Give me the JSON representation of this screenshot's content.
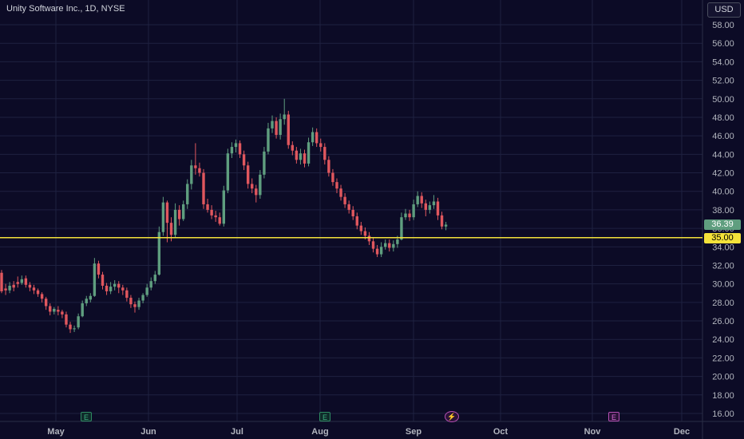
{
  "header": {
    "title": "Unity Software Inc., 1D, NYSE",
    "currency": "USD"
  },
  "markers": {
    "current_price": "36.39",
    "level_price": "35.00"
  },
  "events": [
    {
      "name": "earnings-may",
      "month": "Jun",
      "glyph": "E",
      "kind": "earnings"
    },
    {
      "name": "earnings-aug",
      "month": "Aug",
      "glyph": "E",
      "kind": "earnings"
    },
    {
      "name": "dividend-sep",
      "month": "Sep",
      "glyph": "⚡",
      "kind": "split"
    },
    {
      "name": "earnings-nov",
      "month": "Nov",
      "glyph": "E",
      "kind": "earnings-future"
    }
  ],
  "colors": {
    "up": "#5f9e7f",
    "down": "#e0575e",
    "level": "#f4e23a",
    "background": "#0c0b26",
    "grid": "#1e2140",
    "axis_text": "#b2b5be"
  },
  "chart_data": {
    "type": "candlestick",
    "title": "Unity Software Inc., 1D, NYSE",
    "ylim": [
      15,
      59
    ],
    "y_ticks": [
      "16.00",
      "18.00",
      "20.00",
      "22.00",
      "24.00",
      "26.00",
      "28.00",
      "30.00",
      "32.00",
      "34.00",
      "36.00",
      "38.00",
      "40.00",
      "42.00",
      "44.00",
      "46.00",
      "48.00",
      "50.00",
      "52.00",
      "54.00",
      "56.00",
      "58.00"
    ],
    "x_ticks": [
      "May",
      "Jun",
      "Jul",
      "Aug",
      "Sep",
      "Oct",
      "Nov",
      "Dec"
    ],
    "horizontal_line": 35.0,
    "last_price": 36.39,
    "candles": [
      [
        31.2,
        29.2,
        31.5,
        29.0
      ],
      [
        29.5,
        29.3,
        30.0,
        28.8
      ],
      [
        29.3,
        29.8,
        30.2,
        29.0
      ],
      [
        29.9,
        29.6,
        30.3,
        29.2
      ],
      [
        30.2,
        30.0,
        30.8,
        29.6
      ],
      [
        30.1,
        30.5,
        30.9,
        29.9
      ],
      [
        30.6,
        29.9,
        30.9,
        29.6
      ],
      [
        29.9,
        29.6,
        30.2,
        29.2
      ],
      [
        29.6,
        29.3,
        29.9,
        28.9
      ],
      [
        29.3,
        28.9,
        29.5,
        28.6
      ],
      [
        28.9,
        28.4,
        29.1,
        28.0
      ],
      [
        28.4,
        27.6,
        28.6,
        27.2
      ],
      [
        27.6,
        27.0,
        27.9,
        26.6
      ],
      [
        27.0,
        27.3,
        27.5,
        26.7
      ],
      [
        27.2,
        27.0,
        27.6,
        26.6
      ],
      [
        27.0,
        26.7,
        27.2,
        26.3
      ],
      [
        26.7,
        25.6,
        27.0,
        25.3
      ],
      [
        25.6,
        25.1,
        25.9,
        24.7
      ],
      [
        25.1,
        25.2,
        25.5,
        24.8
      ],
      [
        25.3,
        26.5,
        26.8,
        25.1
      ],
      [
        26.5,
        27.9,
        28.2,
        26.4
      ],
      [
        27.9,
        28.4,
        28.7,
        27.6
      ],
      [
        28.3,
        28.7,
        29.0,
        28.0
      ],
      [
        28.7,
        32.2,
        32.8,
        28.6
      ],
      [
        32.2,
        31.0,
        32.5,
        30.6
      ],
      [
        31.0,
        29.8,
        31.3,
        29.4
      ],
      [
        29.8,
        29.2,
        30.1,
        28.8
      ],
      [
        29.2,
        29.7,
        30.2,
        28.9
      ],
      [
        29.7,
        30.0,
        30.4,
        29.3
      ],
      [
        30.0,
        29.6,
        30.3,
        29.0
      ],
      [
        29.6,
        29.3,
        29.9,
        28.8
      ],
      [
        29.3,
        28.5,
        29.6,
        28.1
      ],
      [
        28.5,
        27.8,
        28.8,
        27.4
      ],
      [
        27.8,
        27.5,
        28.1,
        26.9
      ],
      [
        27.5,
        28.2,
        28.5,
        27.2
      ],
      [
        28.2,
        28.8,
        29.0,
        27.9
      ],
      [
        28.8,
        29.6,
        30.0,
        28.6
      ],
      [
        29.6,
        30.3,
        30.7,
        29.3
      ],
      [
        30.3,
        31.0,
        31.4,
        30.0
      ],
      [
        31.0,
        35.6,
        36.2,
        30.9
      ],
      [
        35.6,
        38.8,
        39.4,
        35.2
      ],
      [
        38.8,
        36.6,
        39.0,
        34.5
      ],
      [
        36.6,
        35.3,
        37.2,
        34.6
      ],
      [
        35.3,
        38.0,
        38.7,
        35.0
      ],
      [
        38.0,
        37.0,
        38.5,
        36.3
      ],
      [
        37.0,
        38.6,
        39.0,
        36.8
      ],
      [
        38.6,
        40.8,
        41.3,
        38.1
      ],
      [
        40.8,
        42.8,
        43.4,
        40.2
      ],
      [
        42.8,
        42.5,
        45.2,
        41.8
      ],
      [
        42.5,
        42.0,
        43.1,
        41.6
      ],
      [
        42.0,
        38.6,
        42.4,
        38.1
      ],
      [
        38.6,
        38.0,
        39.2,
        37.7
      ],
      [
        38.0,
        37.4,
        38.5,
        37.0
      ],
      [
        37.4,
        37.2,
        37.9,
        36.7
      ],
      [
        37.2,
        36.5,
        37.7,
        36.3
      ],
      [
        36.5,
        40.1,
        40.6,
        36.2
      ],
      [
        40.1,
        44.1,
        44.6,
        39.8
      ],
      [
        44.1,
        44.8,
        45.3,
        43.6
      ],
      [
        44.8,
        45.2,
        45.6,
        44.2
      ],
      [
        45.2,
        44.0,
        45.5,
        43.6
      ],
      [
        44.0,
        42.8,
        44.4,
        42.3
      ],
      [
        42.8,
        40.8,
        43.2,
        40.3
      ],
      [
        40.8,
        40.3,
        41.4,
        39.8
      ],
      [
        40.3,
        39.6,
        40.7,
        38.8
      ],
      [
        39.6,
        41.8,
        42.3,
        39.2
      ],
      [
        41.8,
        44.3,
        44.8,
        41.4
      ],
      [
        44.3,
        46.8,
        47.4,
        44.0
      ],
      [
        46.8,
        47.6,
        48.2,
        46.3
      ],
      [
        47.6,
        46.1,
        48.0,
        45.7
      ],
      [
        46.1,
        47.8,
        48.4,
        45.6
      ],
      [
        47.8,
        48.3,
        50.0,
        47.2
      ],
      [
        48.3,
        45.0,
        48.7,
        44.6
      ],
      [
        45.0,
        44.4,
        45.4,
        43.9
      ],
      [
        44.4,
        43.4,
        44.8,
        43.0
      ],
      [
        43.4,
        44.1,
        44.6,
        42.9
      ],
      [
        44.1,
        43.0,
        44.5,
        42.6
      ],
      [
        43.0,
        45.3,
        45.8,
        42.7
      ],
      [
        45.3,
        46.4,
        46.9,
        44.9
      ],
      [
        46.4,
        45.2,
        46.8,
        44.8
      ],
      [
        45.2,
        44.8,
        45.7,
        44.3
      ],
      [
        44.8,
        43.4,
        45.2,
        42.9
      ],
      [
        43.4,
        42.0,
        43.8,
        41.6
      ],
      [
        42.0,
        41.0,
        42.4,
        40.6
      ],
      [
        41.0,
        40.3,
        41.4,
        39.8
      ],
      [
        40.3,
        39.4,
        40.7,
        39.0
      ],
      [
        39.4,
        38.6,
        39.8,
        38.2
      ],
      [
        38.6,
        38.0,
        39.0,
        37.6
      ],
      [
        38.0,
        37.3,
        38.4,
        36.9
      ],
      [
        37.3,
        36.3,
        37.7,
        35.9
      ],
      [
        36.3,
        35.7,
        36.7,
        35.3
      ],
      [
        35.7,
        35.2,
        36.1,
        34.8
      ],
      [
        35.2,
        34.6,
        35.6,
        34.2
      ],
      [
        34.6,
        33.8,
        35.0,
        33.4
      ],
      [
        33.8,
        33.2,
        34.2,
        32.9
      ],
      [
        33.2,
        34.0,
        34.5,
        32.9
      ],
      [
        34.0,
        34.4,
        34.8,
        33.7
      ],
      [
        34.4,
        33.9,
        34.8,
        33.5
      ],
      [
        33.9,
        34.3,
        34.7,
        33.5
      ],
      [
        34.3,
        34.8,
        35.2,
        33.9
      ],
      [
        34.8,
        37.2,
        37.7,
        34.7
      ],
      [
        37.2,
        37.6,
        38.1,
        36.9
      ],
      [
        37.6,
        37.2,
        38.0,
        36.8
      ],
      [
        37.2,
        38.6,
        39.1,
        36.9
      ],
      [
        38.6,
        39.5,
        40.0,
        38.3
      ],
      [
        39.5,
        38.7,
        39.9,
        38.2
      ],
      [
        38.7,
        38.0,
        39.1,
        37.3
      ],
      [
        38.0,
        38.5,
        38.9,
        37.6
      ],
      [
        38.5,
        38.9,
        39.6,
        38.1
      ],
      [
        38.9,
        37.4,
        39.3,
        36.9
      ],
      [
        37.4,
        36.2,
        37.8,
        35.9
      ],
      [
        36.2,
        36.4,
        36.7,
        35.8
      ]
    ]
  }
}
